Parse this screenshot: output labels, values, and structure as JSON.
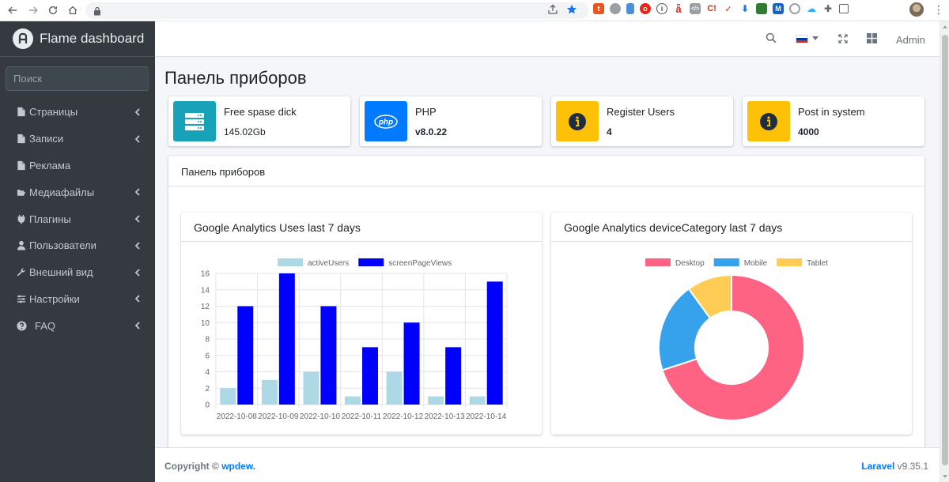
{
  "browser": {
    "url": ""
  },
  "sidebar": {
    "brand": "Flame dashboard",
    "search_placeholder": "Поиск",
    "items": [
      {
        "label": "Страницы",
        "icon": "file-icon",
        "has_arrow": true
      },
      {
        "label": "Записи",
        "icon": "file-icon",
        "has_arrow": true
      },
      {
        "label": "Реклама",
        "icon": "file-icon",
        "has_arrow": false
      },
      {
        "label": "Медиафайлы",
        "icon": "folder-open-icon",
        "has_arrow": true
      },
      {
        "label": "Плагины",
        "icon": "plug-icon",
        "has_arrow": true
      },
      {
        "label": "Пользователи",
        "icon": "user-icon",
        "has_arrow": true
      },
      {
        "label": "Внешний вид",
        "icon": "wrench-icon",
        "has_arrow": true
      },
      {
        "label": "Настройки",
        "icon": "sliders-icon",
        "has_arrow": true
      },
      {
        "label": "FAQ",
        "icon": "question-circle-icon",
        "has_arrow": true
      }
    ]
  },
  "topnav": {
    "user": "Admin",
    "language": "ru"
  },
  "page": {
    "title": "Панель приборов"
  },
  "info_boxes": [
    {
      "label": "Free spase dick",
      "value": "145.02Gb",
      "color": "#17a2b8",
      "icon": "server-icon"
    },
    {
      "label": "PHP",
      "value": "v8.0.22",
      "color": "#007bff",
      "icon": "php-icon"
    },
    {
      "label": "Register Users",
      "value": "4",
      "color": "#ffc107",
      "icon": "info-icon"
    },
    {
      "label": "Post in system",
      "value": "4000",
      "color": "#ffc107",
      "icon": "info-icon"
    }
  ],
  "panel": {
    "title": "Панель приборов"
  },
  "chart_data": [
    {
      "type": "bar",
      "title": "Google Analytics Uses last 7 days",
      "categories": [
        "2022-10-08",
        "2022-10-09",
        "2022-10-10",
        "2022-10-11",
        "2022-10-12",
        "2022-10-13",
        "2022-10-14"
      ],
      "series": [
        {
          "name": "activeUsers",
          "values": [
            2,
            3,
            4,
            1,
            4,
            1,
            1
          ],
          "color": "#add8e6"
        },
        {
          "name": "screenPageViews",
          "values": [
            12,
            16,
            12,
            7,
            10,
            7,
            15
          ],
          "color": "#0000ff"
        }
      ],
      "y_ticks": [
        "0",
        "2",
        "4",
        "6",
        "8",
        "10",
        "12",
        "14",
        "16"
      ],
      "ylim": [
        0,
        16
      ],
      "legend": "top",
      "grid": true
    },
    {
      "type": "pie",
      "title": "Google Analytics deviceCategory last 7 days",
      "categories": [
        "Desktop",
        "Mobile",
        "Tablet"
      ],
      "values": [
        70,
        20,
        10
      ],
      "colors": [
        "#ff6384",
        "#36a2eb",
        "#ffcd56"
      ],
      "legend": "top",
      "doughnut": true
    }
  ],
  "footer": {
    "copyright": "Copyright ©",
    "author": "wpdew.",
    "framework": "Laravel",
    "version": "v9.35.1"
  }
}
